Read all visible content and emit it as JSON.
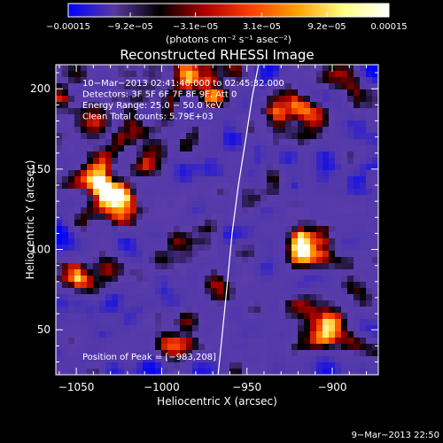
{
  "chart_data": {
    "type": "heatmap",
    "title": "Reconstructed RHESSI Image",
    "xlabel": "Heliocentric X (arcsec)",
    "ylabel": "Heliocentric Y (arcsec)",
    "xlim": [
      -1062,
      -873
    ],
    "ylim": [
      22,
      215
    ],
    "x_ticks": [
      -1050,
      -1000,
      -950,
      -900
    ],
    "x_tick_labels": [
      "−1050",
      "−1000",
      "−950",
      "−900"
    ],
    "y_ticks": [
      50,
      100,
      150,
      200
    ],
    "y_tick_labels": [
      "50",
      "100",
      "150",
      "200"
    ],
    "colorbar": {
      "range": [
        -0.00015,
        0.00015
      ],
      "ticks": [
        -0.00015,
        -9.2e-05,
        -3.1e-05,
        3.1e-05,
        9.2e-05,
        0.00015
      ],
      "tick_labels": [
        "−0.00015",
        "−9.2e−05",
        "−3.1e−05",
        "3.1e−05",
        "9.2e−05",
        "0.00015"
      ],
      "unit_label": "(photons cm⁻² s⁻¹ asec⁻²)",
      "colors": [
        "#0000ff",
        "#5a3aa0",
        "#000000",
        "#b00000",
        "#ff4000",
        "#ffa000",
        "#ffff80",
        "#ffffff"
      ]
    },
    "annotations": [
      "10−Mar−2013 02:41:40.000 to 02:45:32.000",
      "Detectors: 3F 5F 6F 7F 8F 9F, Att 0",
      "Energy Range: 25.0 − 50.0 keV",
      "Clean     Total counts: 5.79E+03"
    ],
    "peak_label": "Position of Peak = [−983,208]",
    "peak": [
      -983,
      208
    ],
    "limb_curve": {
      "color": "#ffffff",
      "x": [
        -966.9,
        -964.2,
        -961.4,
        -958.7,
        -955.0,
        -950.5,
        -946.9,
        -943.2
      ],
      "y": [
        22,
        50,
        80,
        110,
        140,
        170,
        195,
        215
      ]
    },
    "grid": false
  },
  "footer": {
    "timestamp": "9−Mar−2013 22:50"
  }
}
